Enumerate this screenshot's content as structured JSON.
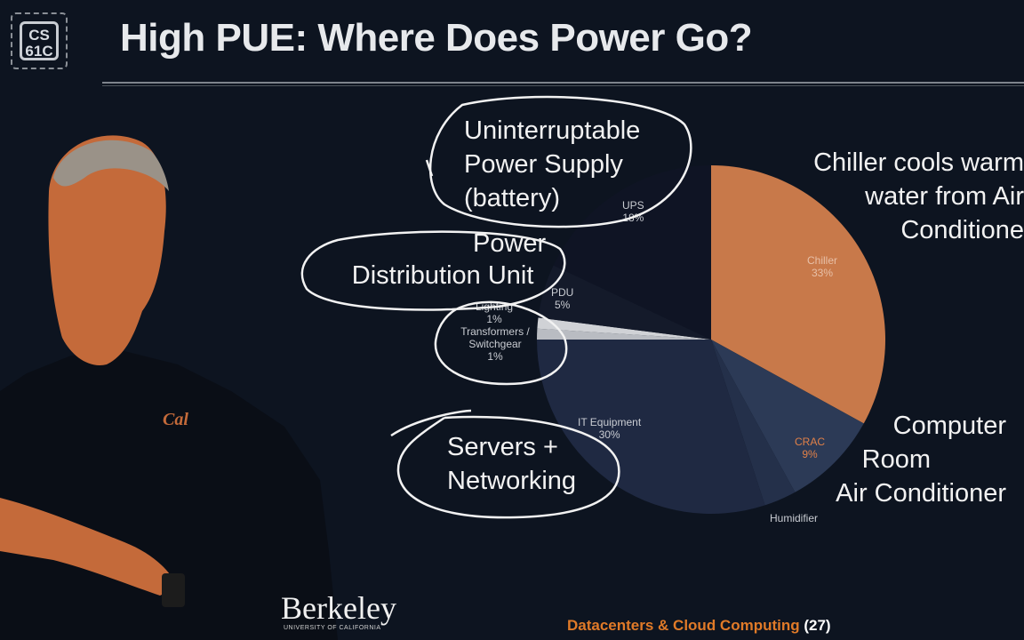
{
  "header": {
    "logo_line1": "CS",
    "logo_line2": "61C",
    "title": "High PUE: Where Does Power Go?"
  },
  "annotations": {
    "ups_line1": "Uninterruptable",
    "ups_line2": "Power Supply",
    "ups_line3": "(battery)",
    "pdu_line1": "Power",
    "pdu_line2": "Distribution Unit",
    "servers_line1": "Servers +",
    "servers_line2": "Networking",
    "chiller_line1": "Chiller cools warm",
    "chiller_line2": "water from Air",
    "chiller_line3": "Conditione",
    "crac_line1": "Computer",
    "crac_line2": "Room",
    "crac_line3": "Air Conditioner"
  },
  "chart_data": {
    "type": "pie",
    "title": "",
    "slices": [
      {
        "label": "Chiller",
        "value_label": "33%",
        "value": 33,
        "color": "#c8794a"
      },
      {
        "label": "CRAC",
        "value_label": "9%",
        "value": 9,
        "color": "#2c3a56"
      },
      {
        "label": "Humidifier",
        "value_label": "",
        "value": 3,
        "color": "#24304a"
      },
      {
        "label": "IT Equipment",
        "value_label": "30%",
        "value": 30,
        "color": "#1f2942"
      },
      {
        "label": "Transformers / Switchgear",
        "value_label": "1%",
        "value": 1,
        "color": "#b9bcc2"
      },
      {
        "label": "Lighting",
        "value_label": "1%",
        "value": 1,
        "color": "#d0d2d6"
      },
      {
        "label": "PDU",
        "value_label": "5%",
        "value": 5,
        "color": "#141a2a"
      },
      {
        "label": "UPS",
        "value_label": "18%",
        "value": 18,
        "color": "#0f1424"
      }
    ]
  },
  "footer": {
    "course": "Datacenters & Cloud Computing",
    "page": "(27)",
    "university": "Berkeley",
    "university_sub": "UNIVERSITY OF CALIFORNIA"
  },
  "colors": {
    "background": "#0d1420",
    "accent": "#e07a28",
    "chiller": "#c8794a"
  }
}
